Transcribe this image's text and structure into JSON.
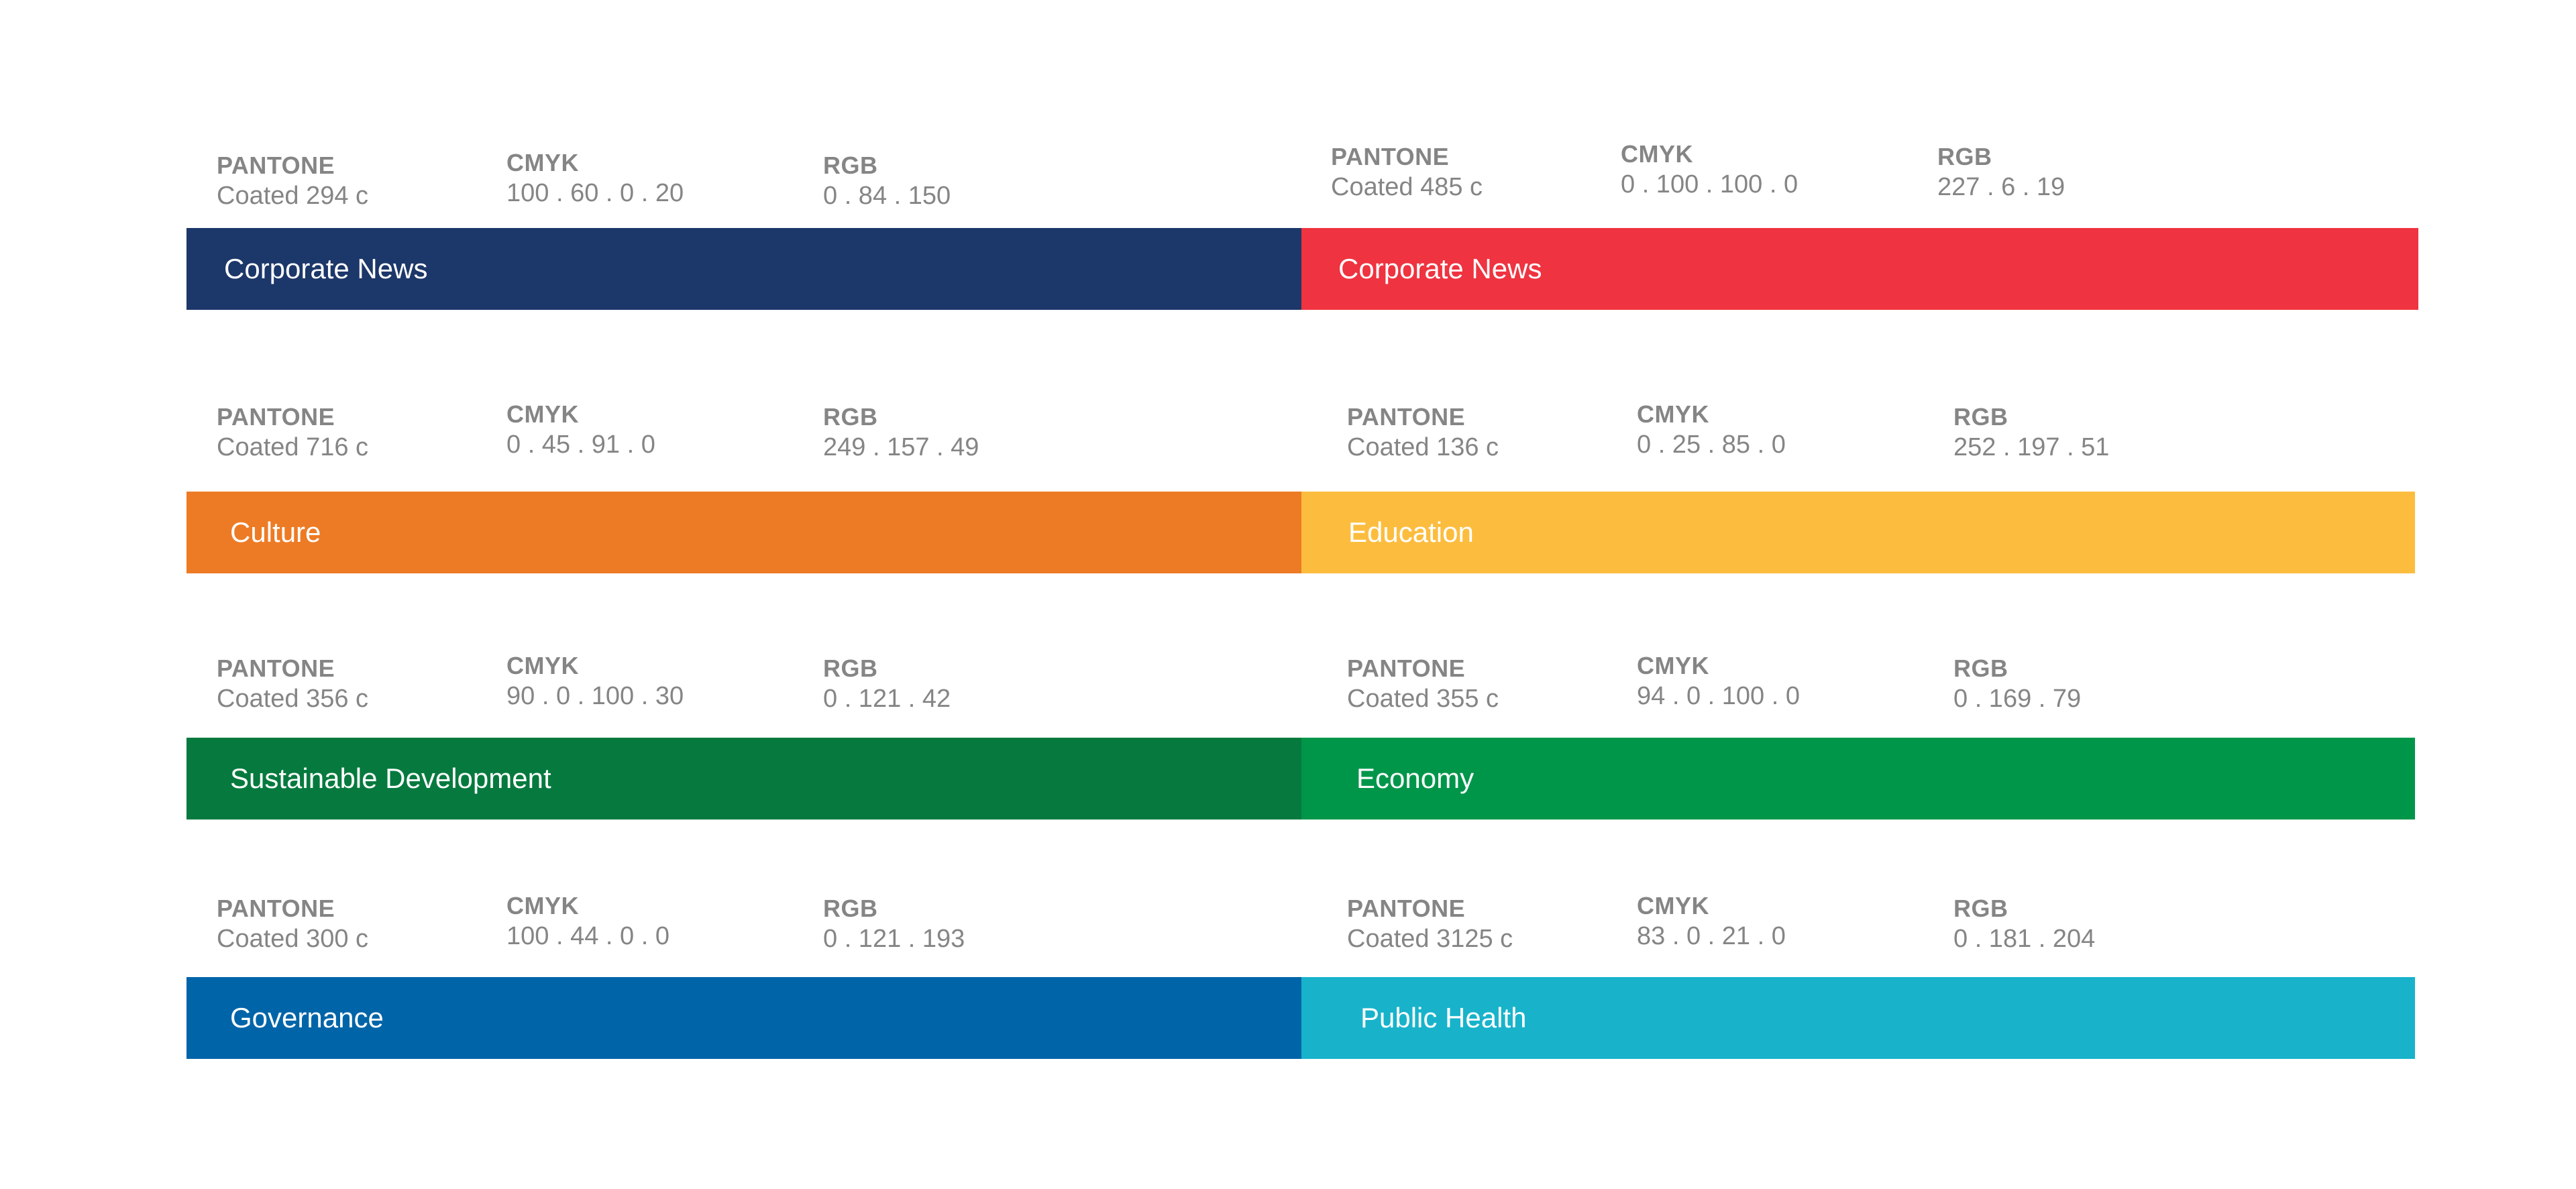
{
  "labels": {
    "pantone": "PANTONE",
    "cmyk": "CMYK",
    "rgb": "RGB"
  },
  "swatches": [
    {
      "name": "Corporate News",
      "pantone": "Coated 294 c",
      "cmyk": "100 . 60 . 0 . 20",
      "rgb": "0 . 84 . 150",
      "color": "#1c3769"
    },
    {
      "name": "Corporate News",
      "pantone": "Coated 485 c",
      "cmyk": "0 . 100 . 100 . 0",
      "rgb": "227 . 6 . 19",
      "color": "#ef3340"
    },
    {
      "name": "Culture",
      "pantone": "Coated 716 c",
      "cmyk": "0 . 45 . 91 . 0",
      "rgb": "249 . 157 . 49",
      "color": "#ed7b25"
    },
    {
      "name": "Education",
      "pantone": "Coated 136 c",
      "cmyk": "0 . 25 . 85 . 0",
      "rgb": "252 . 197 . 51",
      "color": "#fcbd3f"
    },
    {
      "name": "Sustainable Development",
      "pantone": "Coated 356 c",
      "cmyk": "90 . 0 . 100 . 30",
      "rgb": "0 . 121 . 42",
      "color": "#067a3e"
    },
    {
      "name": "Economy",
      "pantone": "Coated 355 c",
      "cmyk": "94 . 0 . 100 . 0",
      "rgb": "0 . 169 . 79",
      "color": "#00964a"
    },
    {
      "name": "Governance",
      "pantone": "Coated 300 c",
      "cmyk": "100 . 44 . 0 . 0",
      "rgb": "0 . 121 . 193",
      "color": "#0064a8"
    },
    {
      "name": "Public Health",
      "pantone": "Coated 3125 c",
      "cmyk": "83 . 0 . 21 . 0",
      "rgb": "0 . 181 . 204",
      "color": "#18b3cb"
    }
  ]
}
